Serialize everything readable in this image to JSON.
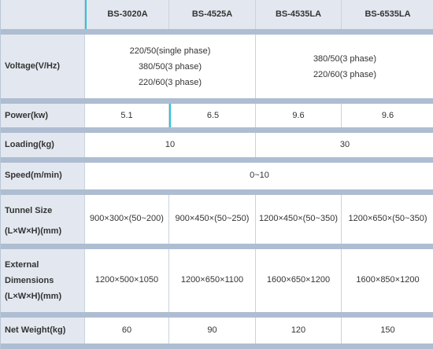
{
  "header": {
    "models": [
      "BS-3020A",
      "BS-4525A",
      "BS-4535LA",
      "BS-6535LA"
    ]
  },
  "rows": {
    "voltage": {
      "label": "Voltage(V/Hz)",
      "group1": [
        "220/50(single phase)",
        "380/50(3 phase)",
        "220/60(3 phase)"
      ],
      "group2": [
        "380/50(3 phase)",
        "220/60(3 phase)"
      ]
    },
    "power": {
      "label": "Power(kw)",
      "values": [
        "5.1",
        "6.5",
        "9.6",
        "9.6"
      ]
    },
    "loading": {
      "label": "Loading(kg)",
      "group1": "10",
      "group2": "30"
    },
    "speed": {
      "label": "Speed(m/min)",
      "value": "0~10"
    },
    "tunnel": {
      "label_lines": [
        "Tunnel Size",
        "(L×W×H)(mm)"
      ],
      "values": [
        "900×300×(50~200)",
        "900×450×(50~250)",
        "1200×450×(50~350)",
        "1200×650×(50~350)"
      ]
    },
    "external": {
      "label_lines": [
        "External",
        "Dimensions",
        "(L×W×H)(mm)"
      ],
      "values": [
        "1200×500×1050",
        "1200×650×1100",
        "1600×650×1200",
        "1600×850×1200"
      ]
    },
    "weight": {
      "label": "Net Weight(kg)",
      "values": [
        "60",
        "90",
        "120",
        "150"
      ]
    }
  },
  "colors": {
    "label_bg": "#e3e8f0",
    "separator": "#aebdd1",
    "accent_cyan": "#31c3d8",
    "text": "#333333"
  }
}
